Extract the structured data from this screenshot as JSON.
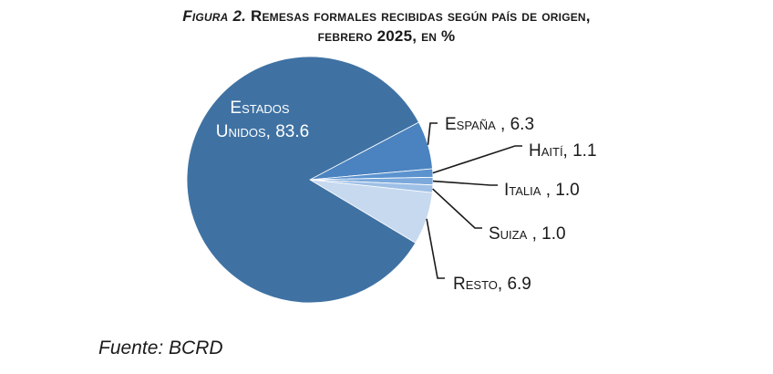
{
  "title": {
    "prefix": "Figura 2.",
    "line1": "Remesas formales recibidas según país de origen,",
    "line2": "febrero 2025, en %"
  },
  "source": "Fuente: BCRD",
  "chart_data": {
    "type": "pie",
    "title": "Figura 2. Remesas formales recibidas según país de origen, febrero 2025, en %",
    "slices": [
      {
        "name": "Estados Unidos",
        "value": 83.6,
        "label_text": "83.6",
        "color": "#3f72a3"
      },
      {
        "name": "España",
        "value": 6.3,
        "label_text": "6.3",
        "color": "#4a83bf"
      },
      {
        "name": "Haití",
        "value": 1.1,
        "label_text": "1.1",
        "color": "#5b93cf"
      },
      {
        "name": "Italia",
        "value": 1.0,
        "label_text": "1.0",
        "color": "#7ba9dc"
      },
      {
        "name": "Suiza",
        "value": 1.0,
        "label_text": "1.0",
        "color": "#9fc0e6"
      },
      {
        "name": "Resto",
        "value": 6.9,
        "label_text": "6.9",
        "color": "#c7d9ef"
      }
    ]
  }
}
